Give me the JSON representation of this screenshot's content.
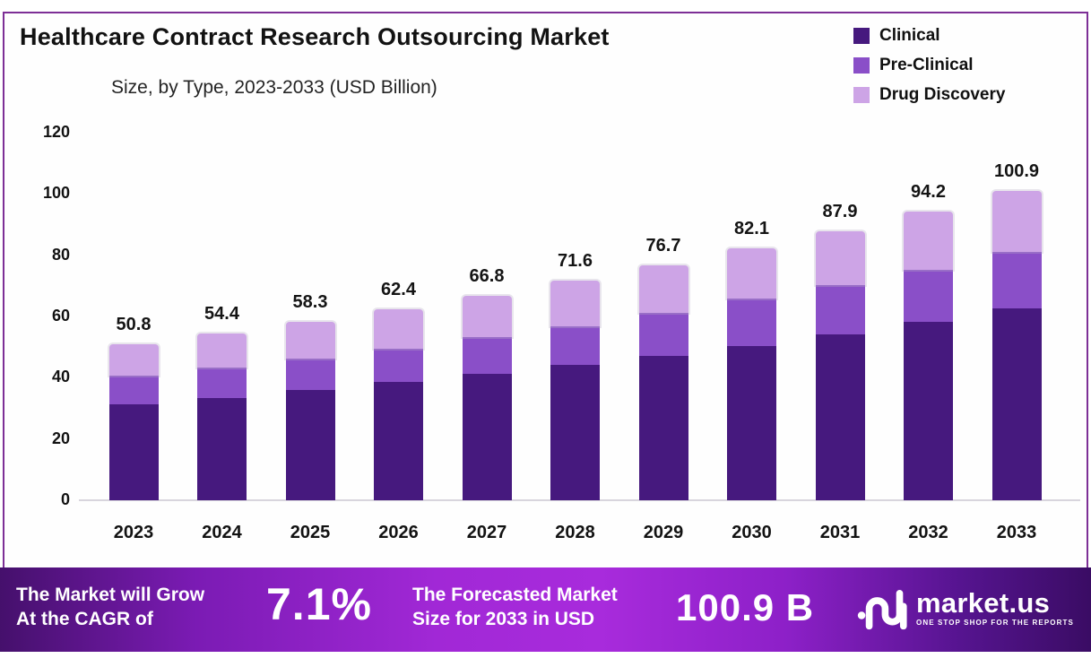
{
  "title": "Healthcare Contract Research Outsourcing Market",
  "subtitle": "Size, by Type, 2023-2033 (USD Billion)",
  "legend": [
    {
      "label": "Clinical",
      "color": "#46197e"
    },
    {
      "label": "Pre-Clinical",
      "color": "#8a4fc8"
    },
    {
      "label": "Drug Discovery",
      "color": "#cda4e6"
    }
  ],
  "chart_data": {
    "type": "bar",
    "stacked": true,
    "title": "Healthcare Contract Research Outsourcing Market Size, by Type, 2023-2033 (USD Billion)",
    "categories": [
      "2023",
      "2024",
      "2025",
      "2026",
      "2027",
      "2028",
      "2029",
      "2030",
      "2031",
      "2032",
      "2033"
    ],
    "series": [
      {
        "name": "Clinical",
        "color": "#46197e",
        "values": [
          31.2,
          33.5,
          35.9,
          38.5,
          41.3,
          44.2,
          47.1,
          50.2,
          54.1,
          58.3,
          62.7
        ]
      },
      {
        "name": "Pre-Clinical",
        "color": "#8a4fc8",
        "values": [
          9.4,
          9.7,
          10.4,
          11.1,
          11.9,
          12.6,
          14.0,
          15.6,
          16.2,
          17.0,
          18.3
        ]
      },
      {
        "name": "Drug Discovery",
        "color": "#cda4e6",
        "values": [
          10.2,
          11.2,
          12.0,
          12.8,
          13.6,
          14.8,
          15.6,
          16.3,
          17.6,
          18.9,
          19.9
        ]
      }
    ],
    "totals": [
      50.8,
      54.4,
      58.3,
      62.4,
      66.8,
      71.6,
      76.7,
      82.1,
      87.9,
      94.2,
      100.9
    ],
    "xlabel": "",
    "ylabel": "",
    "ylim": [
      0,
      120
    ],
    "yticks": [
      0,
      20,
      40,
      60,
      80,
      100,
      120
    ],
    "grid": false,
    "legend_position": "top-right"
  },
  "banner": {
    "cagr_line1": "The Market will Grow",
    "cagr_line2": "At the CAGR of",
    "cagr_value": "7.1%",
    "forecast_line1": "The Forecasted Market",
    "forecast_line2": "Size for 2033 in USD",
    "forecast_value": "100.9 B",
    "logo_text": "market.us",
    "logo_tagline": "ONE STOP SHOP FOR THE REPORTS"
  },
  "colors": {
    "clinical": "#46197e",
    "pre_clinical": "#8a4fc8",
    "drug_discovery": "#cda4e6",
    "frame_border": "#7d2f96",
    "banner_center": "#a82bdc",
    "banner_edge": "#3a0c64",
    "axis_line": "#d8d5dd",
    "text": "#121212"
  }
}
